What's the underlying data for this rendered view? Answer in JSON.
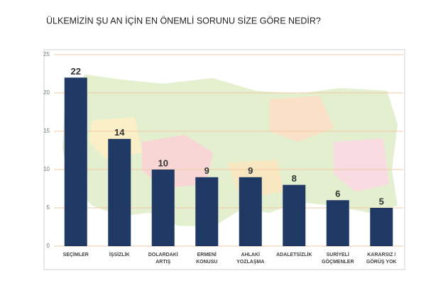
{
  "chart_data": {
    "type": "bar",
    "title": "ÜLKEMİZİN ŞU AN İÇİN EN ÖNEMLİ SORUNU SİZE GÖRE NEDİR?",
    "categories": [
      [
        "SEÇİMLER"
      ],
      [
        "İŞSİZLİK"
      ],
      [
        "DOLARDAKİ",
        "ARTIŞ"
      ],
      [
        "ERMENİ",
        "KONUSU"
      ],
      [
        "AHLAKİ",
        "YOZLAŞMA"
      ],
      [
        "ADALETSİZLİK"
      ],
      [
        "SURİYELİ",
        "GÖÇMENLER"
      ],
      [
        "KARARSIZ /",
        "GÖRÜŞ YOK"
      ]
    ],
    "values": [
      22,
      14,
      10,
      9,
      9,
      8,
      6,
      5
    ],
    "color": "#1f3864",
    "ylim": [
      0,
      25
    ],
    "yticks": [
      0,
      5,
      10,
      15,
      20,
      25
    ],
    "grid": true
  }
}
